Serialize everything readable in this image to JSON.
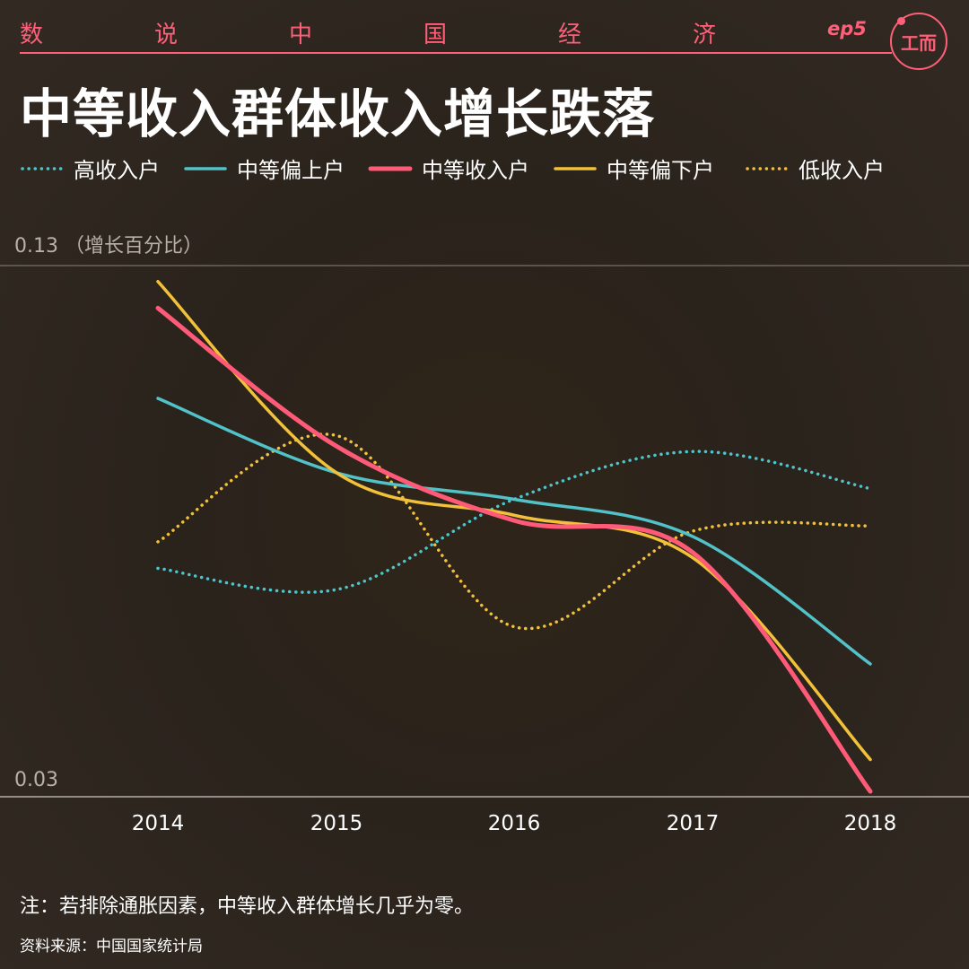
{
  "header": {
    "series_chars": [
      "数",
      "说",
      "中",
      "国",
      "经",
      "济"
    ],
    "episode": "ep5",
    "logo_text": "工而"
  },
  "headline": "中等收入群体收入增长跌落",
  "footer": {
    "note": "注：若排除通胀因素，中等收入群体增长几乎为零。",
    "source": "资料来源：中国国家统计局"
  },
  "chart_data": {
    "type": "line",
    "title": "中等收入群体收入增长跌落",
    "ylabel": "0.13 （增长百分比）",
    "ytick_labels": [
      "0.13 （增长百分比）",
      "0.03"
    ],
    "ylim": [
      0.03,
      0.13
    ],
    "x": [
      "2014",
      "2015",
      "2016",
      "2017",
      "2018"
    ],
    "legend_position": "top",
    "grid": false,
    "series": [
      {
        "name": "高收入户",
        "color": "#4dc5cd",
        "style": "dotted",
        "values": [
          0.073,
          0.069,
          0.086,
          0.095,
          0.088
        ]
      },
      {
        "name": "中等偏上户",
        "color": "#52c2c9",
        "style": "solid",
        "values": [
          0.105,
          0.091,
          0.086,
          0.079,
          0.055
        ]
      },
      {
        "name": "中等收入户",
        "color": "#ff5a78",
        "style": "solid",
        "values": [
          0.122,
          0.096,
          0.082,
          0.076,
          0.031
        ]
      },
      {
        "name": "中等偏下户",
        "color": "#f2c13a",
        "style": "solid",
        "values": [
          0.127,
          0.091,
          0.083,
          0.075,
          0.037
        ]
      },
      {
        "name": "低收入户",
        "color": "#f2c13a",
        "style": "dotted",
        "values": [
          0.078,
          0.098,
          0.062,
          0.08,
          0.081
        ]
      }
    ]
  }
}
